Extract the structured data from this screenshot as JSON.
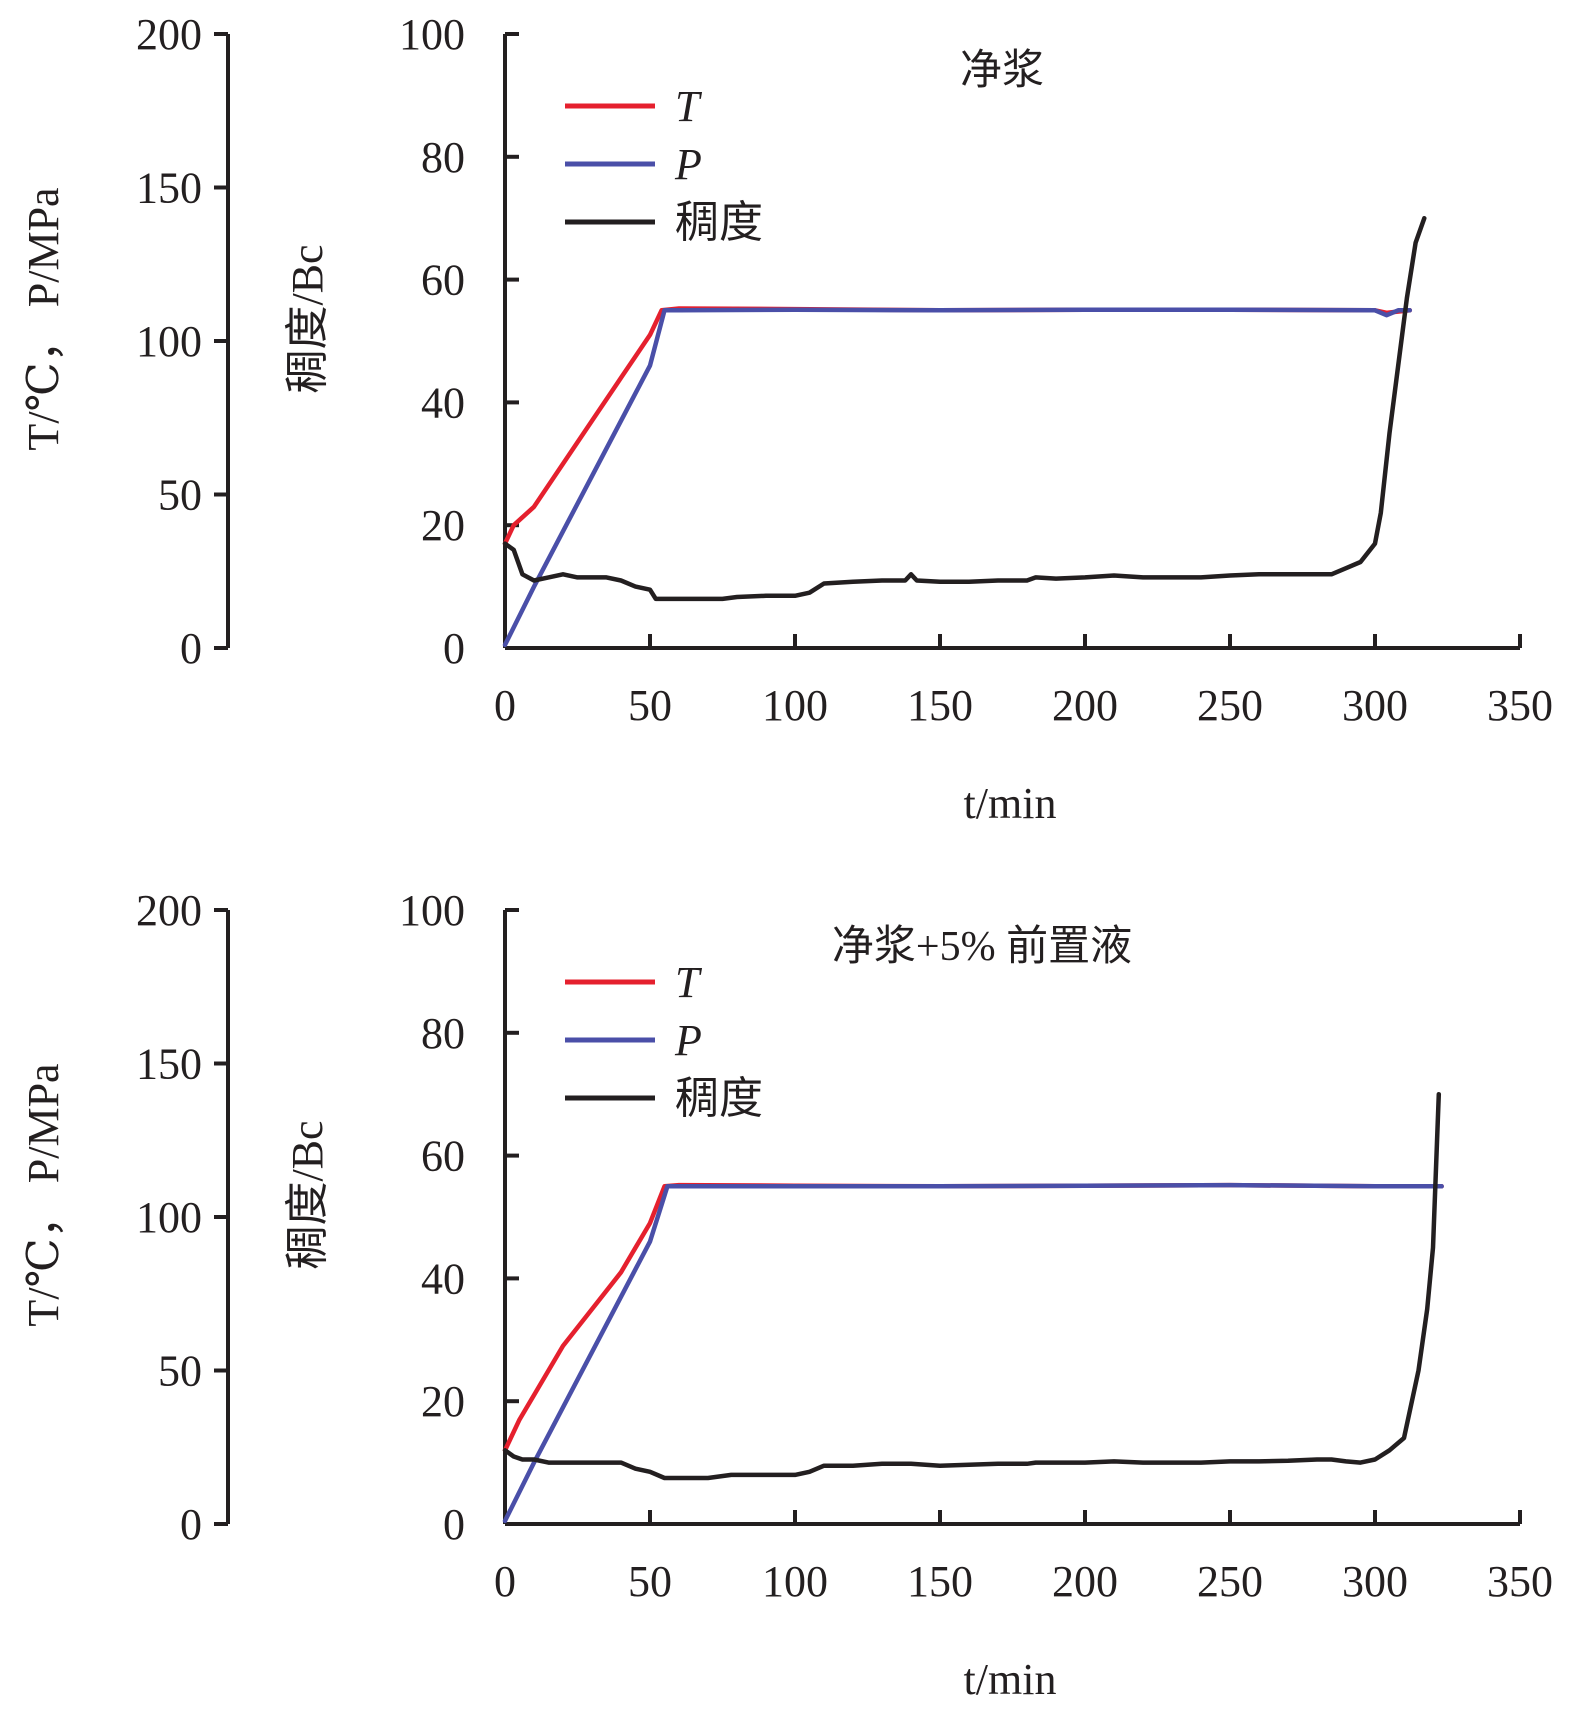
{
  "figure": {
    "chart_data": [
      {
        "type": "line",
        "title": "净浆",
        "xlabel": "t/min",
        "ylabel_outer": "T/℃， P/MPa",
        "ylabel_inner": "稠度/Bc",
        "xlim": [
          0,
          350
        ],
        "xticks": [
          "0",
          "50",
          "100",
          "150",
          "200",
          "250",
          "300",
          "350"
        ],
        "ylim_outer": [
          0,
          200
        ],
        "yticks_outer": [
          "0",
          "50",
          "100",
          "150",
          "200"
        ],
        "ylim_inner": [
          0,
          100
        ],
        "yticks_inner": [
          "0",
          "20",
          "40",
          "60",
          "80",
          "100"
        ],
        "grid": false,
        "legend_position": "top-left",
        "series": [
          {
            "name": "T",
            "color": "#e5202e",
            "axis": "inner",
            "points": [
              [
                0,
                17
              ],
              [
                3,
                20
              ],
              [
                10,
                23
              ],
              [
                20,
                30
              ],
              [
                30,
                37
              ],
              [
                40,
                44
              ],
              [
                50,
                51
              ],
              [
                54,
                55
              ],
              [
                60,
                55.3
              ],
              [
                100,
                55.2
              ],
              [
                150,
                55
              ],
              [
                200,
                55.1
              ],
              [
                250,
                55.1
              ],
              [
                300,
                55
              ],
              [
                304,
                54.6
              ],
              [
                312,
                55
              ]
            ]
          },
          {
            "name": "P",
            "color": "#4a4fa8",
            "axis": "inner",
            "points": [
              [
                0,
                0.5
              ],
              [
                10,
                10
              ],
              [
                20,
                19
              ],
              [
                30,
                28
              ],
              [
                40,
                37
              ],
              [
                50,
                46
              ],
              [
                55,
                55
              ],
              [
                60,
                55
              ],
              [
                100,
                55.1
              ],
              [
                150,
                55
              ],
              [
                200,
                55.1
              ],
              [
                250,
                55.1
              ],
              [
                300,
                55
              ],
              [
                304,
                54.2
              ],
              [
                308,
                55
              ],
              [
                312,
                55
              ]
            ]
          },
          {
            "name": "稠度",
            "color": "#231f20",
            "axis": "inner",
            "points": [
              [
                0,
                17
              ],
              [
                3,
                16
              ],
              [
                6,
                12
              ],
              [
                10,
                11
              ],
              [
                15,
                11.5
              ],
              [
                20,
                12
              ],
              [
                25,
                11.5
              ],
              [
                30,
                11.5
              ],
              [
                35,
                11.5
              ],
              [
                40,
                11
              ],
              [
                45,
                10
              ],
              [
                50,
                9.5
              ],
              [
                52,
                8
              ],
              [
                55,
                8
              ],
              [
                60,
                8
              ],
              [
                70,
                8
              ],
              [
                75,
                8
              ],
              [
                80,
                8.3
              ],
              [
                90,
                8.5
              ],
              [
                100,
                8.5
              ],
              [
                105,
                9
              ],
              [
                110,
                10.5
              ],
              [
                120,
                10.8
              ],
              [
                130,
                11
              ],
              [
                138,
                11
              ],
              [
                140,
                12
              ],
              [
                142,
                11
              ],
              [
                150,
                10.8
              ],
              [
                160,
                10.8
              ],
              [
                170,
                11
              ],
              [
                180,
                11
              ],
              [
                183,
                11.5
              ],
              [
                190,
                11.3
              ],
              [
                200,
                11.5
              ],
              [
                210,
                11.8
              ],
              [
                220,
                11.5
              ],
              [
                230,
                11.5
              ],
              [
                240,
                11.5
              ],
              [
                250,
                11.8
              ],
              [
                260,
                12
              ],
              [
                270,
                12
              ],
              [
                280,
                12
              ],
              [
                285,
                12
              ],
              [
                290,
                13
              ],
              [
                295,
                14
              ],
              [
                300,
                17
              ],
              [
                302,
                22
              ],
              [
                305,
                35
              ],
              [
                308,
                46
              ],
              [
                311,
                57
              ],
              [
                314,
                66
              ],
              [
                317,
                70
              ]
            ]
          }
        ]
      },
      {
        "type": "line",
        "title": "净浆+5% 前置液",
        "xlabel": "t/min",
        "ylabel_outer": "T/℃， P/MPa",
        "ylabel_inner": "稠度/Bc",
        "xlim": [
          0,
          350
        ],
        "xticks": [
          "0",
          "50",
          "100",
          "150",
          "200",
          "250",
          "300",
          "350"
        ],
        "ylim_outer": [
          0,
          200
        ],
        "yticks_outer": [
          "0",
          "50",
          "100",
          "150",
          "200"
        ],
        "ylim_inner": [
          0,
          100
        ],
        "yticks_inner": [
          "0",
          "20",
          "40",
          "60",
          "80",
          "100"
        ],
        "grid": false,
        "legend_position": "top-left",
        "series": [
          {
            "name": "T",
            "color": "#e5202e",
            "axis": "inner",
            "points": [
              [
                0,
                12
              ],
              [
                5,
                17
              ],
              [
                10,
                21
              ],
              [
                15,
                25
              ],
              [
                20,
                29
              ],
              [
                30,
                35
              ],
              [
                40,
                41
              ],
              [
                50,
                49
              ],
              [
                55,
                55
              ],
              [
                60,
                55.2
              ],
              [
                100,
                55.1
              ],
              [
                150,
                55
              ],
              [
                200,
                55.1
              ],
              [
                250,
                55.2
              ],
              [
                300,
                55
              ],
              [
                323,
                55
              ]
            ]
          },
          {
            "name": "P",
            "color": "#4a4fa8",
            "axis": "inner",
            "points": [
              [
                0,
                0.5
              ],
              [
                10,
                10
              ],
              [
                20,
                19
              ],
              [
                30,
                28
              ],
              [
                40,
                37
              ],
              [
                50,
                46
              ],
              [
                56,
                55
              ],
              [
                60,
                55
              ],
              [
                100,
                55
              ],
              [
                150,
                55
              ],
              [
                200,
                55.1
              ],
              [
                250,
                55.2
              ],
              [
                300,
                55
              ],
              [
                323,
                55
              ]
            ]
          },
          {
            "name": "稠度",
            "color": "#231f20",
            "axis": "inner",
            "points": [
              [
                0,
                12
              ],
              [
                3,
                11
              ],
              [
                6,
                10.5
              ],
              [
                10,
                10.5
              ],
              [
                15,
                10
              ],
              [
                20,
                10
              ],
              [
                30,
                10
              ],
              [
                40,
                10
              ],
              [
                45,
                9
              ],
              [
                50,
                8.5
              ],
              [
                55,
                7.5
              ],
              [
                60,
                7.5
              ],
              [
                70,
                7.5
              ],
              [
                78,
                8
              ],
              [
                85,
                8
              ],
              [
                90,
                8
              ],
              [
                100,
                8
              ],
              [
                105,
                8.5
              ],
              [
                110,
                9.5
              ],
              [
                120,
                9.5
              ],
              [
                130,
                9.8
              ],
              [
                140,
                9.8
              ],
              [
                150,
                9.5
              ],
              [
                170,
                9.8
              ],
              [
                180,
                9.8
              ],
              [
                183,
                10
              ],
              [
                190,
                10
              ],
              [
                200,
                10
              ],
              [
                210,
                10.2
              ],
              [
                220,
                10
              ],
              [
                230,
                10
              ],
              [
                240,
                10
              ],
              [
                250,
                10.2
              ],
              [
                260,
                10.2
              ],
              [
                270,
                10.3
              ],
              [
                280,
                10.5
              ],
              [
                285,
                10.5
              ],
              [
                290,
                10.2
              ],
              [
                295,
                10
              ],
              [
                300,
                10.5
              ],
              [
                305,
                12
              ],
              [
                310,
                14
              ],
              [
                315,
                25
              ],
              [
                318,
                35
              ],
              [
                320,
                45
              ],
              [
                322,
                70
              ]
            ]
          }
        ]
      }
    ]
  }
}
